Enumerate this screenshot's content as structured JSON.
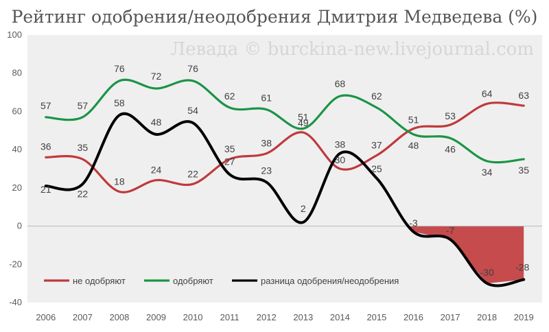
{
  "chart_data": {
    "type": "line",
    "title": "Рейтинг одобрения/неодобрения Дмитрия Медведева (%)",
    "watermark": "Левада © burckina-new.livejournal.com",
    "xlabel": "",
    "ylabel": "",
    "categories": [
      "2006",
      "2007",
      "2008",
      "2009",
      "2010",
      "2011",
      "2012",
      "2013",
      "2014",
      "2015",
      "2016",
      "2017",
      "2018",
      "2019"
    ],
    "ylim": [
      -40,
      100
    ],
    "yticks": [
      -40,
      -20,
      0,
      20,
      40,
      60,
      80,
      100
    ],
    "grid": false,
    "legend_position": "bottom-left",
    "series": [
      {
        "name": "не одобряют",
        "color": "#c0393b",
        "values": [
          36,
          35,
          18,
          24,
          22,
          35,
          38,
          49,
          30,
          37,
          51,
          53,
          64,
          63
        ]
      },
      {
        "name": "одобряют",
        "color": "#1a9446",
        "values": [
          57,
          57,
          76,
          72,
          76,
          62,
          61,
          51,
          68,
          62,
          48,
          46,
          34,
          35
        ]
      },
      {
        "name": "разница одобрения/неодобрения",
        "color": "#000000",
        "values": [
          21,
          22,
          58,
          48,
          54,
          27,
          23,
          2,
          38,
          25,
          -3,
          -7,
          -30,
          -28
        ]
      }
    ],
    "negative_fill_color": "#c0393b",
    "plot_background": "#efefef"
  }
}
